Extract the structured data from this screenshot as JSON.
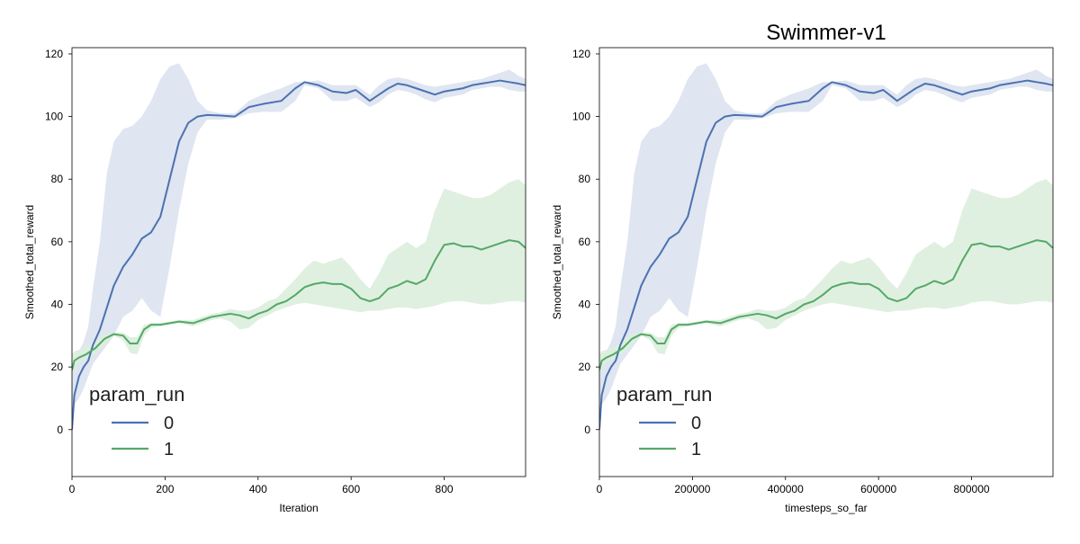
{
  "colors": {
    "series_0": "#4c72b0",
    "series_1": "#55a868",
    "band_0": "#dbe2f0",
    "band_1": "#dceedd"
  },
  "chart_data": [
    {
      "type": "line",
      "title": "",
      "xlabel": "Iteration",
      "ylabel": "Smoothed_total_reward",
      "xlim": [
        0,
        975
      ],
      "ylim": [
        -15,
        122
      ],
      "xticks": [
        0,
        200,
        400,
        600,
        800
      ],
      "xtick_labels": [
        "0",
        "200",
        "400",
        "600",
        "800"
      ],
      "yticks": [
        0,
        20,
        40,
        60,
        80,
        100,
        120
      ],
      "ytick_labels": [
        "0",
        "20",
        "40",
        "60",
        "80",
        "100",
        "120"
      ],
      "grid": false,
      "legend": {
        "title": "param_run",
        "placement": "lower-left",
        "entries": [
          {
            "label": "0",
            "series": 0
          },
          {
            "label": "1",
            "series": 1
          }
        ]
      },
      "series": [
        {
          "name": "0",
          "x": [
            0,
            5,
            15,
            25,
            35,
            45,
            60,
            75,
            90,
            110,
            130,
            150,
            170,
            190,
            210,
            230,
            250,
            270,
            290,
            320,
            350,
            380,
            410,
            450,
            480,
            500,
            530,
            560,
            590,
            610,
            640,
            660,
            680,
            700,
            720,
            740,
            760,
            780,
            800,
            820,
            840,
            860,
            880,
            900,
            920,
            940,
            960,
            975
          ],
          "y": [
            0,
            11,
            17,
            20,
            22,
            27,
            32,
            39,
            46,
            52,
            56,
            61,
            63,
            68,
            80,
            92,
            98,
            100,
            100.5,
            100.3,
            100,
            103,
            104,
            105,
            109,
            111,
            110,
            108,
            107.5,
            108.5,
            105,
            107,
            109,
            110.5,
            110,
            109,
            108,
            107,
            108,
            108.5,
            109,
            110,
            110.5,
            111,
            111.5,
            111,
            110.5,
            110
          ],
          "upper": [
            20,
            23,
            25,
            28,
            33,
            45,
            60,
            82,
            92,
            96,
            97,
            100,
            105,
            112,
            116,
            117,
            112,
            105,
            102,
            101,
            101,
            105,
            107,
            109,
            111,
            111,
            111.5,
            110,
            110,
            110,
            107,
            110,
            112,
            112.5,
            112,
            111,
            110,
            109.5,
            110,
            110.5,
            111,
            111.5,
            112,
            113,
            114,
            115,
            113,
            112
          ],
          "lower": [
            0,
            8,
            10,
            13,
            17,
            21,
            24,
            27,
            30,
            36,
            38,
            42,
            38,
            36,
            52,
            70,
            85,
            95,
            99,
            99,
            99.5,
            101,
            101.5,
            101.5,
            105,
            110,
            109,
            105,
            105,
            106,
            103,
            104.5,
            107,
            108.5,
            108,
            107,
            105.5,
            104.5,
            106,
            106.5,
            107,
            108.5,
            109,
            109.5,
            109.5,
            108.5,
            108,
            108
          ]
        },
        {
          "name": "1",
          "x": [
            0,
            5,
            15,
            30,
            50,
            70,
            90,
            110,
            125,
            140,
            155,
            170,
            190,
            210,
            230,
            260,
            280,
            300,
            320,
            340,
            360,
            380,
            400,
            420,
            440,
            460,
            480,
            500,
            520,
            540,
            560,
            580,
            600,
            620,
            640,
            660,
            680,
            700,
            720,
            740,
            760,
            780,
            800,
            820,
            840,
            860,
            880,
            900,
            920,
            940,
            960,
            975
          ],
          "y": [
            19,
            22,
            23,
            24,
            26,
            29,
            30.5,
            30,
            27.5,
            27.5,
            32,
            33.5,
            33.5,
            34,
            34.5,
            34,
            35,
            36,
            36.5,
            37,
            36.5,
            35.5,
            37,
            38,
            40,
            41,
            43,
            45.5,
            46.5,
            47,
            46.5,
            46.5,
            45,
            42,
            41,
            42,
            45,
            46,
            47.5,
            46.5,
            48,
            54,
            59,
            59.5,
            58.5,
            58.5,
            57.5,
            58.5,
            59.5,
            60.5,
            60,
            58
          ],
          "upper": [
            24,
            25,
            25.5,
            26.5,
            28.5,
            30.5,
            31,
            31,
            29.5,
            29.5,
            33.5,
            34,
            34,
            34.5,
            35,
            35,
            36,
            37,
            37.5,
            38.5,
            38,
            38,
            39,
            41,
            42,
            45,
            48,
            51.5,
            54,
            53,
            54,
            55,
            52,
            48,
            45,
            50,
            56,
            58,
            60,
            58,
            60,
            70,
            77,
            76,
            75,
            74,
            74,
            75,
            77,
            79,
            80,
            78
          ],
          "lower": [
            14,
            20,
            21.5,
            22.5,
            24,
            27,
            30,
            28.5,
            24.5,
            24,
            30,
            32.5,
            33,
            33.5,
            34,
            33,
            34,
            35,
            35.5,
            34.5,
            32,
            32.5,
            35,
            36.5,
            38,
            39,
            40,
            40.5,
            40,
            39.5,
            39,
            38.5,
            38,
            37.5,
            38,
            38,
            38.5,
            39,
            39,
            38.5,
            39,
            39.5,
            40.5,
            41,
            41,
            40.5,
            40,
            40,
            40.5,
            41,
            41,
            40.5
          ]
        }
      ]
    },
    {
      "type": "line",
      "title": "Swimmer-v1",
      "xlabel": "timesteps_so_far",
      "ylabel": "Smoothed_total_reward",
      "xlim": [
        0,
        975000
      ],
      "ylim": [
        -15,
        122
      ],
      "xticks": [
        0,
        200000,
        400000,
        600000,
        800000
      ],
      "xtick_labels": [
        "0",
        "200000",
        "400000",
        "600000",
        "800000"
      ],
      "yticks": [
        0,
        20,
        40,
        60,
        80,
        100,
        120
      ],
      "ytick_labels": [
        "0",
        "20",
        "40",
        "60",
        "80",
        "100",
        "120"
      ],
      "grid": false,
      "legend": {
        "title": "param_run",
        "placement": "lower-left",
        "entries": [
          {
            "label": "0",
            "series": 0
          },
          {
            "label": "1",
            "series": 1
          }
        ]
      },
      "series": [
        {
          "name": "0",
          "x": [
            0,
            5000,
            15000,
            25000,
            35000,
            45000,
            60000,
            75000,
            90000,
            110000,
            130000,
            150000,
            170000,
            190000,
            210000,
            230000,
            250000,
            270000,
            290000,
            320000,
            350000,
            380000,
            410000,
            450000,
            480000,
            500000,
            530000,
            560000,
            590000,
            610000,
            640000,
            660000,
            680000,
            700000,
            720000,
            740000,
            760000,
            780000,
            800000,
            820000,
            840000,
            860000,
            880000,
            900000,
            920000,
            940000,
            960000,
            975000
          ],
          "y": [
            0,
            11,
            17,
            20,
            22,
            27,
            32,
            39,
            46,
            52,
            56,
            61,
            63,
            68,
            80,
            92,
            98,
            100,
            100.5,
            100.3,
            100,
            103,
            104,
            105,
            109,
            111,
            110,
            108,
            107.5,
            108.5,
            105,
            107,
            109,
            110.5,
            110,
            109,
            108,
            107,
            108,
            108.5,
            109,
            110,
            110.5,
            111,
            111.5,
            111,
            110.5,
            110
          ],
          "upper": [
            20,
            23,
            25,
            28,
            33,
            45,
            60,
            82,
            92,
            96,
            97,
            100,
            105,
            112,
            116,
            117,
            112,
            105,
            102,
            101,
            101,
            105,
            107,
            109,
            111,
            111,
            111.5,
            110,
            110,
            110,
            107,
            110,
            112,
            112.5,
            112,
            111,
            110,
            109.5,
            110,
            110.5,
            111,
            111.5,
            112,
            113,
            114,
            115,
            113,
            112
          ],
          "lower": [
            0,
            8,
            10,
            13,
            17,
            21,
            24,
            27,
            30,
            36,
            38,
            42,
            38,
            36,
            52,
            70,
            85,
            95,
            99,
            99,
            99.5,
            101,
            101.5,
            101.5,
            105,
            110,
            109,
            105,
            105,
            106,
            103,
            104.5,
            107,
            108.5,
            108,
            107,
            105.5,
            104.5,
            106,
            106.5,
            107,
            108.5,
            109,
            109.5,
            109.5,
            108.5,
            108,
            108
          ]
        },
        {
          "name": "1",
          "x": [
            0,
            5000,
            15000,
            30000,
            50000,
            70000,
            90000,
            110000,
            125000,
            140000,
            155000,
            170000,
            190000,
            210000,
            230000,
            260000,
            280000,
            300000,
            320000,
            340000,
            360000,
            380000,
            400000,
            420000,
            440000,
            460000,
            480000,
            500000,
            520000,
            540000,
            560000,
            580000,
            600000,
            620000,
            640000,
            660000,
            680000,
            700000,
            720000,
            740000,
            760000,
            780000,
            800000,
            820000,
            840000,
            860000,
            880000,
            900000,
            920000,
            940000,
            960000,
            975000
          ],
          "y": [
            19,
            22,
            23,
            24,
            26,
            29,
            30.5,
            30,
            27.5,
            27.5,
            32,
            33.5,
            33.5,
            34,
            34.5,
            34,
            35,
            36,
            36.5,
            37,
            36.5,
            35.5,
            37,
            38,
            40,
            41,
            43,
            45.5,
            46.5,
            47,
            46.5,
            46.5,
            45,
            42,
            41,
            42,
            45,
            46,
            47.5,
            46.5,
            48,
            54,
            59,
            59.5,
            58.5,
            58.5,
            57.5,
            58.5,
            59.5,
            60.5,
            60,
            58
          ],
          "upper": [
            24,
            25,
            25.5,
            26.5,
            28.5,
            30.5,
            31,
            31,
            29.5,
            29.5,
            33.5,
            34,
            34,
            34.5,
            35,
            35,
            36,
            37,
            37.5,
            38.5,
            38,
            38,
            39,
            41,
            42,
            45,
            48,
            51.5,
            54,
            53,
            54,
            55,
            52,
            48,
            45,
            50,
            56,
            58,
            60,
            58,
            60,
            70,
            77,
            76,
            75,
            74,
            74,
            75,
            77,
            79,
            80,
            78
          ],
          "lower": [
            14,
            20,
            21.5,
            22.5,
            24,
            27,
            30,
            28.5,
            24.5,
            24,
            30,
            32.5,
            33,
            33.5,
            34,
            33,
            34,
            35,
            35.5,
            34.5,
            32,
            32.5,
            35,
            36.5,
            38,
            39,
            40,
            40.5,
            40,
            39.5,
            39,
            38.5,
            38,
            37.5,
            38,
            38,
            38.5,
            39,
            39,
            38.5,
            39,
            39.5,
            40.5,
            41,
            41,
            40.5,
            40,
            40,
            40.5,
            41,
            41,
            40.5
          ]
        }
      ]
    }
  ]
}
